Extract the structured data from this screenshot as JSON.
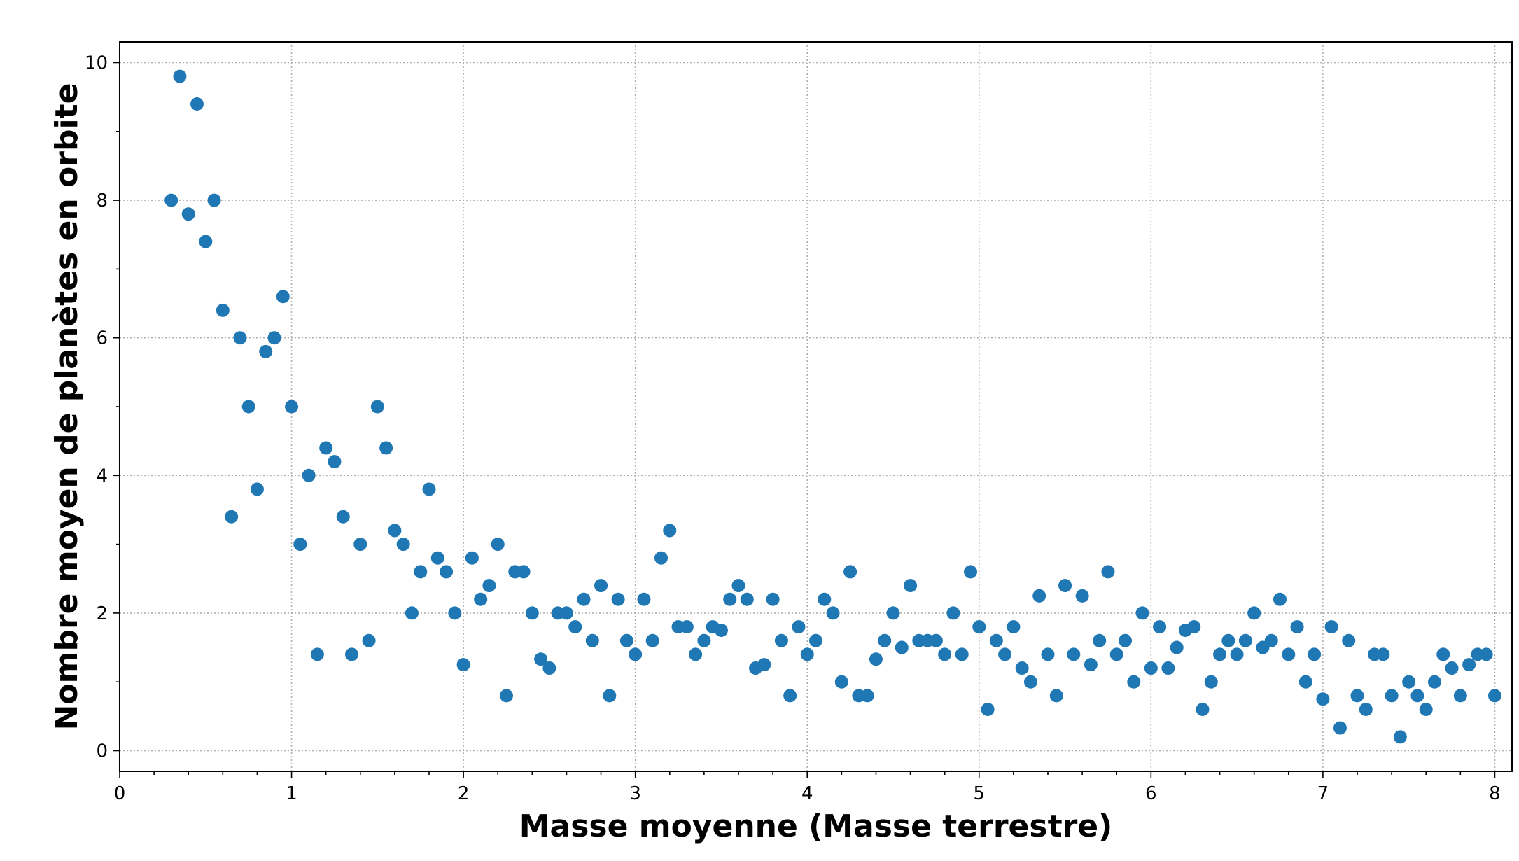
{
  "chart_data": {
    "type": "scatter",
    "title": "",
    "xlabel": "Masse moyenne (Masse terrestre)",
    "ylabel": "Nombre moyen de planètes en orbite",
    "xlim": [
      0,
      8.1
    ],
    "ylim": [
      -0.3,
      10.3
    ],
    "xticks": [
      0,
      1,
      2,
      3,
      4,
      5,
      6,
      7,
      8
    ],
    "yticks": [
      0,
      2,
      4,
      6,
      8,
      10
    ],
    "xticklabels": [
      "0",
      "1",
      "2",
      "3",
      "4",
      "5",
      "6",
      "7",
      "8"
    ],
    "yticklabels": [
      "0",
      "2",
      "4",
      "6",
      "8",
      "10"
    ],
    "grid": true,
    "point_color": "#1f77b4",
    "x": [
      0.3,
      0.35,
      0.4,
      0.45,
      0.5,
      0.55,
      0.6,
      0.65,
      0.7,
      0.75,
      0.8,
      0.85,
      0.9,
      0.95,
      1.0,
      1.05,
      1.1,
      1.15,
      1.2,
      1.25,
      1.3,
      1.35,
      1.4,
      1.45,
      1.5,
      1.55,
      1.6,
      1.65,
      1.7,
      1.75,
      1.8,
      1.85,
      1.9,
      1.95,
      2.0,
      2.05,
      2.1,
      2.15,
      2.2,
      2.25,
      2.3,
      2.35,
      2.4,
      2.45,
      2.5,
      2.55,
      2.6,
      2.65,
      2.7,
      2.75,
      2.8,
      2.85,
      2.9,
      2.95,
      3.0,
      3.05,
      3.1,
      3.15,
      3.2,
      3.25,
      3.3,
      3.35,
      3.4,
      3.45,
      3.5,
      3.55,
      3.6,
      3.65,
      3.7,
      3.75,
      3.8,
      3.85,
      3.9,
      3.95,
      4.0,
      4.05,
      4.1,
      4.15,
      4.2,
      4.25,
      4.3,
      4.35,
      4.4,
      4.45,
      4.5,
      4.55,
      4.6,
      4.65,
      4.7,
      4.75,
      4.8,
      4.85,
      4.9,
      4.95,
      5.0,
      5.05,
      5.1,
      5.15,
      5.2,
      5.25,
      5.3,
      5.35,
      5.4,
      5.45,
      5.5,
      5.55,
      5.6,
      5.65,
      5.7,
      5.75,
      5.8,
      5.85,
      5.9,
      5.95,
      6.0,
      6.05,
      6.1,
      6.15,
      6.2,
      6.25,
      6.3,
      6.35,
      6.4,
      6.45,
      6.5,
      6.55,
      6.6,
      6.65,
      6.7,
      6.75,
      6.8,
      6.85,
      6.9,
      6.95,
      7.0,
      7.05,
      7.1,
      7.15,
      7.2,
      7.25,
      7.3,
      7.35,
      7.4,
      7.45,
      7.5,
      7.55,
      7.6,
      7.65,
      7.7,
      7.75,
      7.8,
      7.85,
      7.9,
      7.95,
      8.0
    ],
    "y": [
      8.0,
      9.8,
      7.8,
      9.4,
      7.4,
      8.0,
      6.4,
      3.4,
      6.0,
      5.0,
      3.8,
      5.8,
      6.0,
      6.6,
      5.0,
      3.0,
      4.0,
      1.4,
      4.4,
      4.2,
      3.4,
      1.4,
      3.0,
      1.6,
      5.0,
      4.4,
      3.2,
      3.0,
      2.0,
      2.6,
      3.8,
      2.8,
      2.6,
      2.0,
      1.25,
      2.8,
      2.2,
      2.4,
      3.0,
      0.8,
      2.6,
      2.6,
      2.0,
      1.33,
      1.2,
      2.0,
      2.0,
      1.8,
      2.2,
      1.6,
      2.4,
      0.8,
      2.2,
      1.6,
      1.4,
      2.2,
      1.6,
      2.8,
      3.2,
      1.8,
      1.8,
      1.4,
      1.6,
      1.8,
      1.75,
      2.2,
      2.4,
      2.2,
      1.2,
      1.25,
      2.2,
      1.6,
      0.8,
      1.8,
      1.4,
      1.6,
      2.2,
      2.0,
      1.0,
      2.6,
      0.8,
      0.8,
      1.33,
      1.6,
      2.0,
      1.5,
      2.4,
      1.6,
      1.6,
      1.6,
      1.4,
      2.0,
      1.4,
      2.6,
      1.8,
      0.6,
      1.6,
      1.4,
      1.8,
      1.2,
      1.0,
      2.25,
      1.4,
      0.8,
      2.4,
      1.4,
      2.25,
      1.25,
      1.6,
      2.6,
      1.4,
      1.6,
      1.0,
      2.0,
      1.2,
      1.8,
      1.2,
      1.5,
      1.75,
      1.8,
      0.6,
      1.0,
      1.4,
      1.6,
      1.4,
      1.6,
      2.0,
      1.5,
      1.6,
      2.2,
      1.4,
      1.8,
      1.0,
      1.4,
      0.75,
      1.8,
      0.33,
      1.6,
      0.8,
      0.6,
      1.4,
      1.4,
      0.8,
      0.2,
      1.0,
      0.8,
      0.6,
      1.0,
      1.4,
      1.2,
      0.8,
      1.25,
      1.4,
      1.4,
      0.8
    ]
  }
}
